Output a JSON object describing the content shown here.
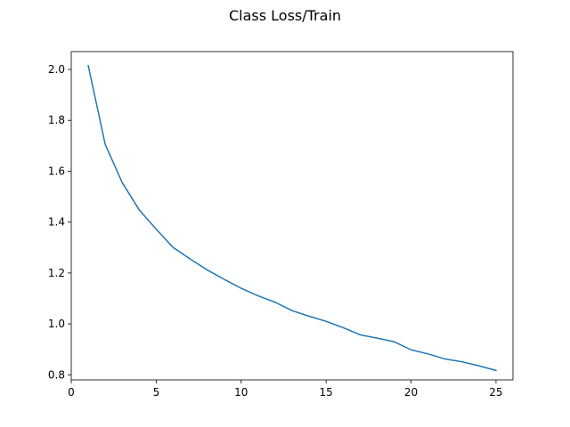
{
  "chart_data": {
    "type": "line",
    "title": "Class Loss/Train",
    "xlabel": "",
    "ylabel": "",
    "xlim": [
      0,
      26
    ],
    "ylim": [
      0.78,
      2.07
    ],
    "xticks": [
      0,
      5,
      10,
      15,
      20,
      25
    ],
    "yticks": [
      0.8,
      1.0,
      1.2,
      1.4,
      1.6,
      1.8,
      2.0
    ],
    "xtick_labels": [
      "0",
      "5",
      "10",
      "15",
      "20",
      "25"
    ],
    "ytick_labels": [
      "0.8",
      "1.0",
      "1.2",
      "1.4",
      "1.6",
      "1.8",
      "2.0"
    ],
    "grid": false,
    "series": [
      {
        "color": "#1f77b4",
        "x": [
          1,
          2,
          3,
          4,
          5,
          6,
          7,
          8,
          9,
          10,
          11,
          12,
          13,
          14,
          15,
          16,
          17,
          18,
          19,
          20,
          21,
          22,
          23,
          24,
          25
        ],
        "y": [
          2.015,
          1.705,
          1.555,
          1.448,
          1.372,
          1.3,
          1.255,
          1.212,
          1.175,
          1.14,
          1.11,
          1.085,
          1.052,
          1.03,
          1.01,
          0.985,
          0.957,
          0.944,
          0.93,
          0.898,
          0.882,
          0.862,
          0.851,
          0.835,
          0.817
        ]
      }
    ]
  }
}
